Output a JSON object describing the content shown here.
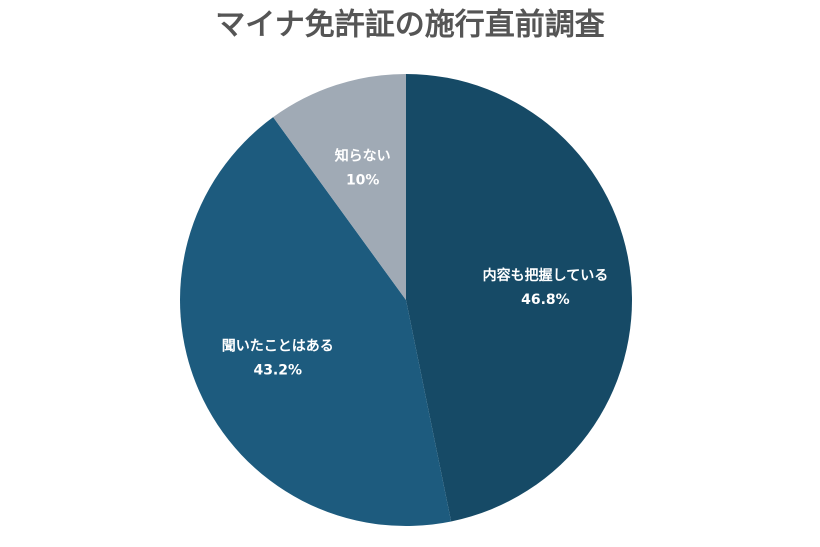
{
  "chart_data": {
    "type": "pie",
    "title": "マイナ免許証の施行直前調査",
    "categories": [
      "内容も把握している",
      "聞いたことはある",
      "知らない"
    ],
    "values": [
      46.8,
      43.2,
      10
    ],
    "value_labels": [
      "46.8%",
      "43.2%",
      "10%"
    ],
    "colors": [
      "#164a66",
      "#1d5b7e",
      "#a0aab5"
    ]
  }
}
